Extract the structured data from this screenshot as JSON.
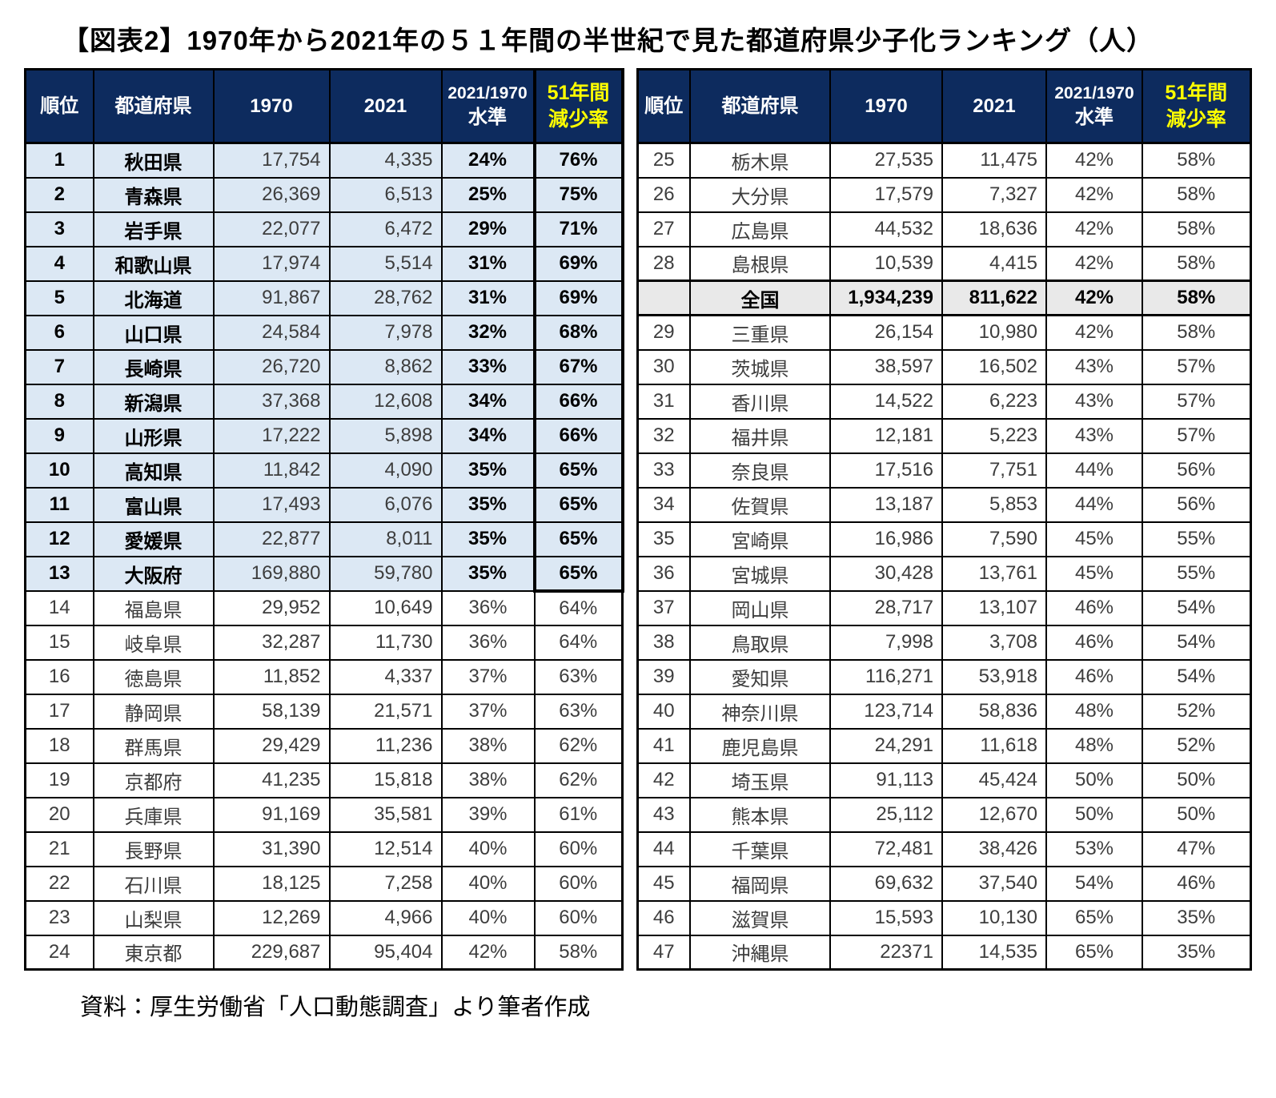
{
  "title": "【図表2】1970年から2021年の５１年間の半世紀で見た都道府県少子化ランキング（人）",
  "source_note": "資料：厚生労働省「人口動態調査」より筆者作成",
  "colors": {
    "header_bg": "#0d2b5e",
    "header_text": "#ffffff",
    "decline_header_text": "#ffff00",
    "top13_row_bg": "#dce8f4",
    "national_row_bg": "#e9e9e9",
    "border_color": "#000000",
    "num_text": "#3d3d3d"
  },
  "headers": {
    "rank": "順位",
    "pref": "都道府県",
    "y1970": "1970",
    "y2021": "2021",
    "level_line1": "2021/1970",
    "level_line2": "水準",
    "decline_line1": "51年間",
    "decline_line2": "減少率"
  },
  "chart_data": {
    "type": "table",
    "title": "【図表2】1970年から2021年の５１年間の半世紀で見た都道府県少子化ランキング（人）",
    "columns": [
      "順位",
      "都道府県",
      "1970",
      "2021",
      "2021/1970 水準",
      "51年間 減少率"
    ],
    "left_rows": [
      {
        "rank": "1",
        "pref": "秋田県",
        "v1970": "17,754",
        "v2021": "4,335",
        "level": "24%",
        "decline": "76%",
        "group": "top13"
      },
      {
        "rank": "2",
        "pref": "青森県",
        "v1970": "26,369",
        "v2021": "6,513",
        "level": "25%",
        "decline": "75%",
        "group": "top13"
      },
      {
        "rank": "3",
        "pref": "岩手県",
        "v1970": "22,077",
        "v2021": "6,472",
        "level": "29%",
        "decline": "71%",
        "group": "top13"
      },
      {
        "rank": "4",
        "pref": "和歌山県",
        "v1970": "17,974",
        "v2021": "5,514",
        "level": "31%",
        "decline": "69%",
        "group": "top13"
      },
      {
        "rank": "5",
        "pref": "北海道",
        "v1970": "91,867",
        "v2021": "28,762",
        "level": "31%",
        "decline": "69%",
        "group": "top13"
      },
      {
        "rank": "6",
        "pref": "山口県",
        "v1970": "24,584",
        "v2021": "7,978",
        "level": "32%",
        "decline": "68%",
        "group": "top13"
      },
      {
        "rank": "7",
        "pref": "長崎県",
        "v1970": "26,720",
        "v2021": "8,862",
        "level": "33%",
        "decline": "67%",
        "group": "top13"
      },
      {
        "rank": "8",
        "pref": "新潟県",
        "v1970": "37,368",
        "v2021": "12,608",
        "level": "34%",
        "decline": "66%",
        "group": "top13"
      },
      {
        "rank": "9",
        "pref": "山形県",
        "v1970": "17,222",
        "v2021": "5,898",
        "level": "34%",
        "decline": "66%",
        "group": "top13"
      },
      {
        "rank": "10",
        "pref": "高知県",
        "v1970": "11,842",
        "v2021": "4,090",
        "level": "35%",
        "decline": "65%",
        "group": "top13"
      },
      {
        "rank": "11",
        "pref": "富山県",
        "v1970": "17,493",
        "v2021": "6,076",
        "level": "35%",
        "decline": "65%",
        "group": "top13"
      },
      {
        "rank": "12",
        "pref": "愛媛県",
        "v1970": "22,877",
        "v2021": "8,011",
        "level": "35%",
        "decline": "65%",
        "group": "top13"
      },
      {
        "rank": "13",
        "pref": "大阪府",
        "v1970": "169,880",
        "v2021": "59,780",
        "level": "35%",
        "decline": "65%",
        "group": "top13",
        "box_end": true
      },
      {
        "rank": "14",
        "pref": "福島県",
        "v1970": "29,952",
        "v2021": "10,649",
        "level": "36%",
        "decline": "64%"
      },
      {
        "rank": "15",
        "pref": "岐阜県",
        "v1970": "32,287",
        "v2021": "11,730",
        "level": "36%",
        "decline": "64%"
      },
      {
        "rank": "16",
        "pref": "徳島県",
        "v1970": "11,852",
        "v2021": "4,337",
        "level": "37%",
        "decline": "63%"
      },
      {
        "rank": "17",
        "pref": "静岡県",
        "v1970": "58,139",
        "v2021": "21,571",
        "level": "37%",
        "decline": "63%"
      },
      {
        "rank": "18",
        "pref": "群馬県",
        "v1970": "29,429",
        "v2021": "11,236",
        "level": "38%",
        "decline": "62%"
      },
      {
        "rank": "19",
        "pref": "京都府",
        "v1970": "41,235",
        "v2021": "15,818",
        "level": "38%",
        "decline": "62%"
      },
      {
        "rank": "20",
        "pref": "兵庫県",
        "v1970": "91,169",
        "v2021": "35,581",
        "level": "39%",
        "decline": "61%"
      },
      {
        "rank": "21",
        "pref": "長野県",
        "v1970": "31,390",
        "v2021": "12,514",
        "level": "40%",
        "decline": "60%"
      },
      {
        "rank": "22",
        "pref": "石川県",
        "v1970": "18,125",
        "v2021": "7,258",
        "level": "40%",
        "decline": "60%"
      },
      {
        "rank": "23",
        "pref": "山梨県",
        "v1970": "12,269",
        "v2021": "4,966",
        "level": "40%",
        "decline": "60%"
      },
      {
        "rank": "24",
        "pref": "東京都",
        "v1970": "229,687",
        "v2021": "95,404",
        "level": "42%",
        "decline": "58%"
      }
    ],
    "right_rows": [
      {
        "rank": "25",
        "pref": "栃木県",
        "v1970": "27,535",
        "v2021": "11,475",
        "level": "42%",
        "decline": "58%"
      },
      {
        "rank": "26",
        "pref": "大分県",
        "v1970": "17,579",
        "v2021": "7,327",
        "level": "42%",
        "decline": "58%"
      },
      {
        "rank": "27",
        "pref": "広島県",
        "v1970": "44,532",
        "v2021": "18,636",
        "level": "42%",
        "decline": "58%"
      },
      {
        "rank": "28",
        "pref": "島根県",
        "v1970": "10,539",
        "v2021": "4,415",
        "level": "42%",
        "decline": "58%"
      },
      {
        "rank": "",
        "pref": "全国",
        "v1970": "1,934,239",
        "v2021": "811,622",
        "level": "42%",
        "decline": "58%",
        "group": "national"
      },
      {
        "rank": "29",
        "pref": "三重県",
        "v1970": "26,154",
        "v2021": "10,980",
        "level": "42%",
        "decline": "58%"
      },
      {
        "rank": "30",
        "pref": "茨城県",
        "v1970": "38,597",
        "v2021": "16,502",
        "level": "43%",
        "decline": "57%"
      },
      {
        "rank": "31",
        "pref": "香川県",
        "v1970": "14,522",
        "v2021": "6,223",
        "level": "43%",
        "decline": "57%"
      },
      {
        "rank": "32",
        "pref": "福井県",
        "v1970": "12,181",
        "v2021": "5,223",
        "level": "43%",
        "decline": "57%"
      },
      {
        "rank": "33",
        "pref": "奈良県",
        "v1970": "17,516",
        "v2021": "7,751",
        "level": "44%",
        "decline": "56%"
      },
      {
        "rank": "34",
        "pref": "佐賀県",
        "v1970": "13,187",
        "v2021": "5,853",
        "level": "44%",
        "decline": "56%"
      },
      {
        "rank": "35",
        "pref": "宮崎県",
        "v1970": "16,986",
        "v2021": "7,590",
        "level": "45%",
        "decline": "55%"
      },
      {
        "rank": "36",
        "pref": "宮城県",
        "v1970": "30,428",
        "v2021": "13,761",
        "level": "45%",
        "decline": "55%"
      },
      {
        "rank": "37",
        "pref": "岡山県",
        "v1970": "28,717",
        "v2021": "13,107",
        "level": "46%",
        "decline": "54%"
      },
      {
        "rank": "38",
        "pref": "鳥取県",
        "v1970": "7,998",
        "v2021": "3,708",
        "level": "46%",
        "decline": "54%"
      },
      {
        "rank": "39",
        "pref": "愛知県",
        "v1970": "116,271",
        "v2021": "53,918",
        "level": "46%",
        "decline": "54%"
      },
      {
        "rank": "40",
        "pref": "神奈川県",
        "v1970": "123,714",
        "v2021": "58,836",
        "level": "48%",
        "decline": "52%"
      },
      {
        "rank": "41",
        "pref": "鹿児島県",
        "v1970": "24,291",
        "v2021": "11,618",
        "level": "48%",
        "decline": "52%"
      },
      {
        "rank": "42",
        "pref": "埼玉県",
        "v1970": "91,113",
        "v2021": "45,424",
        "level": "50%",
        "decline": "50%"
      },
      {
        "rank": "43",
        "pref": "熊本県",
        "v1970": "25,112",
        "v2021": "12,670",
        "level": "50%",
        "decline": "50%"
      },
      {
        "rank": "44",
        "pref": "千葉県",
        "v1970": "72,481",
        "v2021": "38,426",
        "level": "53%",
        "decline": "47%"
      },
      {
        "rank": "45",
        "pref": "福岡県",
        "v1970": "69,632",
        "v2021": "37,540",
        "level": "54%",
        "decline": "46%"
      },
      {
        "rank": "46",
        "pref": "滋賀県",
        "v1970": "15,593",
        "v2021": "10,130",
        "level": "65%",
        "decline": "35%"
      },
      {
        "rank": "47",
        "pref": "沖縄県",
        "v1970": "22371",
        "v2021": "14,535",
        "level": "65%",
        "decline": "35%"
      }
    ]
  }
}
